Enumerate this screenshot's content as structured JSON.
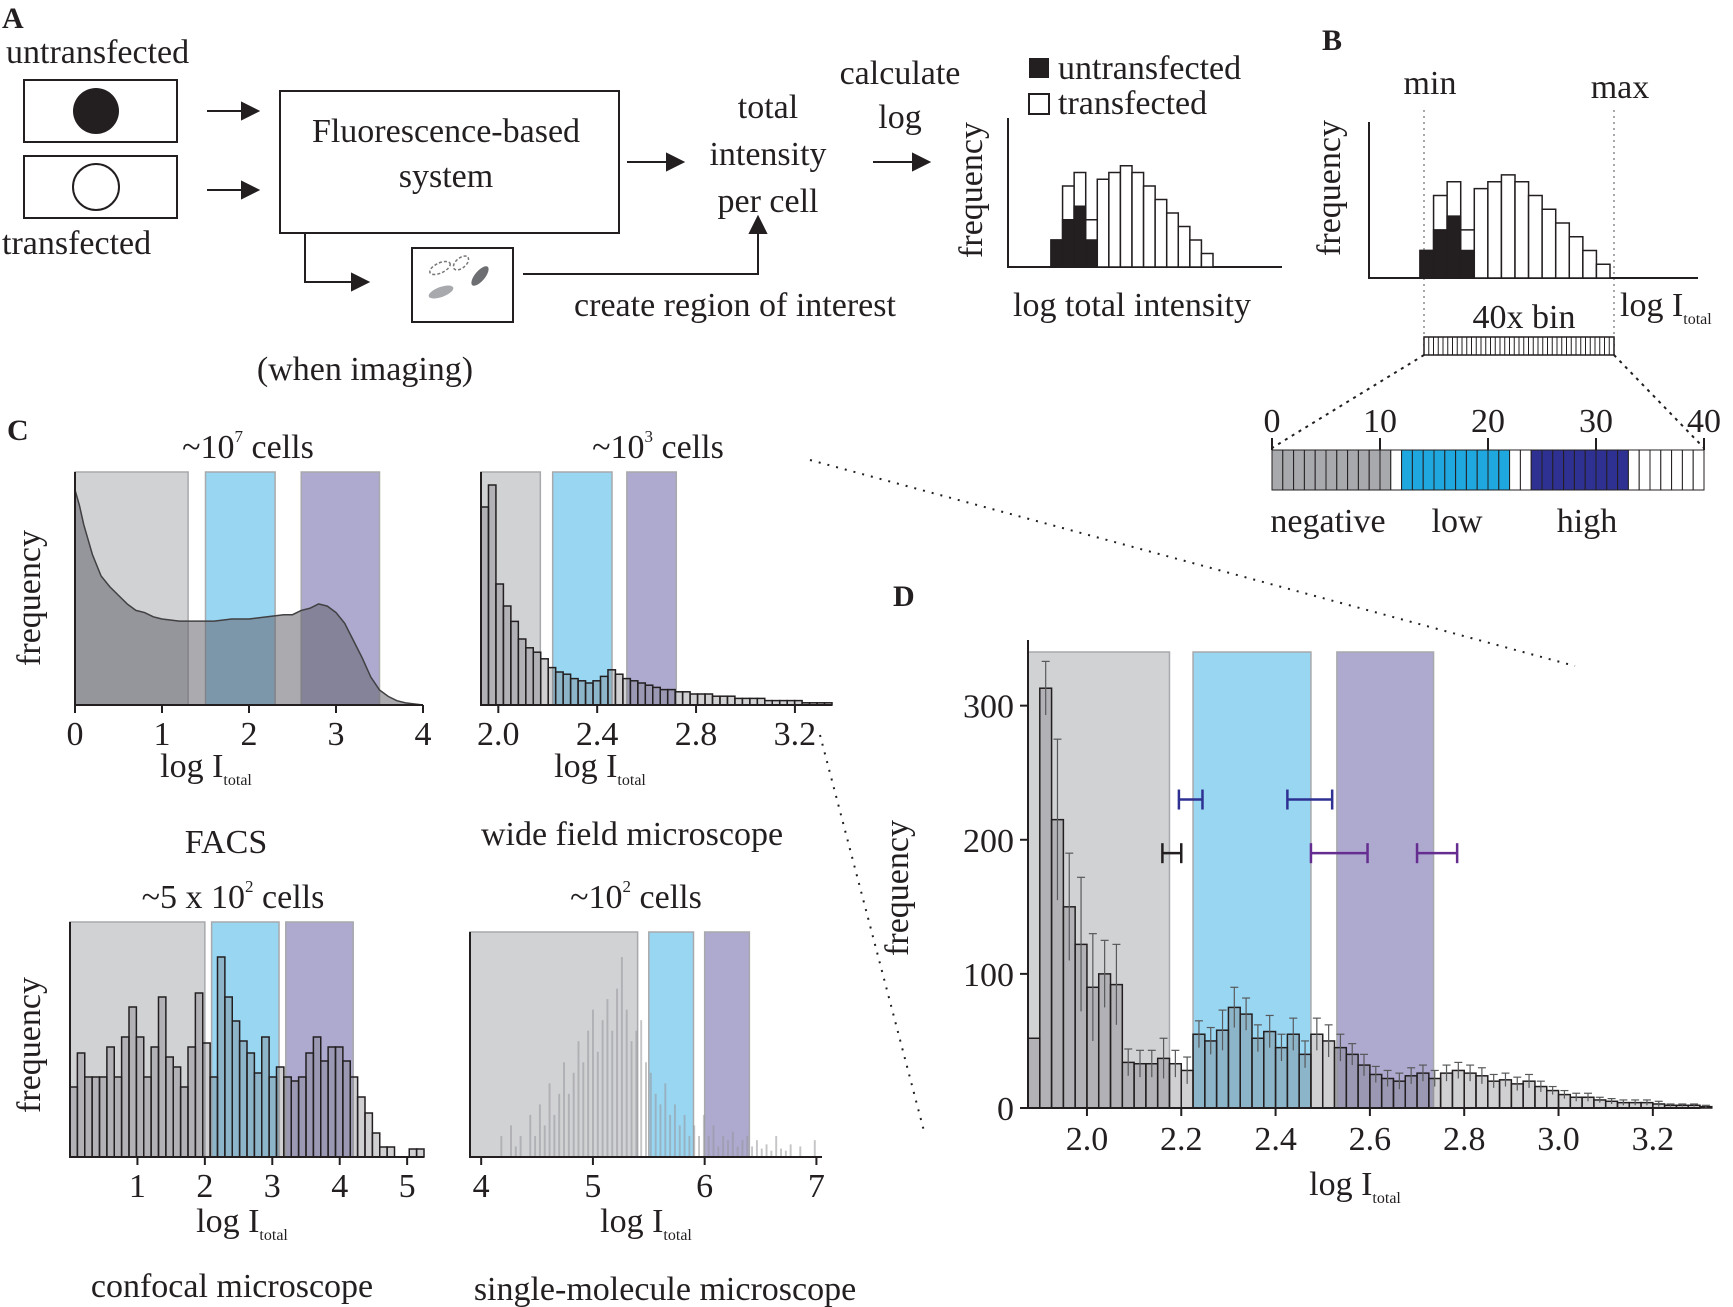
{
  "panel_a": {
    "letter": "A",
    "untransfected_label": "untransfected",
    "transfected_label": "transfected",
    "system_line1": "Fluorescence-based",
    "system_line2": "system",
    "total_line1": "total",
    "total_line2": "intensity",
    "total_line3": "per cell",
    "calc_line1": "calculate",
    "calc_line2": "log",
    "roi_label": "create region of interest",
    "imaging_label": "(when imaging)",
    "legend_untransfected": "untransfected",
    "legend_transfected": "transfected",
    "ylabel": "frequency",
    "xlabel": "log total intensity"
  },
  "panel_b": {
    "letter": "B",
    "min_label": "min",
    "max_label": "max",
    "ylabel": "frequency",
    "xlabel_main": "log I",
    "xlabel_sub": "total",
    "bin_label": "40x bin",
    "ticks": [
      "0",
      "10",
      "20",
      "30",
      "40"
    ],
    "negative_label": "negative",
    "low_label": "low",
    "high_label": "high"
  },
  "panel_c": {
    "letter": "C",
    "facs": {
      "count_main": "~10",
      "count_sup": "7",
      "count_tail": " cells",
      "ylabel": "frequency",
      "xticks": [
        "0",
        "1",
        "2",
        "3",
        "4"
      ],
      "xlabel_main": "log I",
      "xlabel_sub": "total",
      "name": "FACS"
    },
    "widefield": {
      "count_main": "~10",
      "count_sup": "3",
      "count_tail": " cells",
      "xticks": [
        "2.0",
        "2.4",
        "2.8",
        "3.2"
      ],
      "xlabel_main": "log I",
      "xlabel_sub": "total",
      "name": "wide field microscope"
    },
    "confocal": {
      "count_main": "~5 x 10",
      "count_sup": "2",
      "count_tail": " cells",
      "ylabel": "frequency",
      "xticks": [
        "1",
        "2",
        "3",
        "4",
        "5"
      ],
      "xlabel_main": "log I",
      "xlabel_sub": "total",
      "name": "confocal microscope"
    },
    "single": {
      "count_main": "~10",
      "count_sup": "2",
      "count_tail": " cells",
      "xticks": [
        "4",
        "5",
        "6",
        "7"
      ],
      "xlabel_main": "log I",
      "xlabel_sub": "total",
      "name": "single-molecule microscope"
    }
  },
  "panel_d": {
    "letter": "D",
    "ylabel": "frequency",
    "xlabel_main": "log I",
    "xlabel_sub": "total",
    "yticks": [
      "0",
      "100",
      "200",
      "300"
    ],
    "xticks": [
      "2.0",
      "2.2",
      "2.4",
      "2.6",
      "2.8",
      "3.0",
      "3.2"
    ]
  },
  "colors": {
    "negative_gray": "#a7a9ac",
    "gate_gray": "#d1d2d4",
    "low_cyan": "#1fa8e0",
    "gate_cyan": "#99d6f2",
    "high_navy": "#2e3192",
    "gate_purple": "#ada9cf",
    "ink": "#231f20"
  },
  "chart_data": [
    {
      "id": "panel-a-histogram",
      "type": "bar",
      "stacked": true,
      "xlabel": "log total intensity",
      "ylabel": "frequency",
      "legend": [
        "untransfected",
        "transfected"
      ],
      "series": [
        {
          "name": "untransfected",
          "values": [
            4,
            7,
            9,
            4,
            0,
            0,
            0,
            0,
            0,
            0,
            0,
            0,
            0,
            0
          ]
        },
        {
          "name": "transfected",
          "values": [
            0,
            5,
            5,
            3,
            13,
            14,
            15,
            14,
            12,
            10,
            8,
            6,
            4,
            2
          ]
        }
      ]
    },
    {
      "id": "panel-b-histogram",
      "type": "bar",
      "stacked": true,
      "ylabel": "frequency",
      "xlabel": "log Itotal",
      "series": [
        {
          "name": "untransfected",
          "values": [
            4,
            7,
            9,
            4,
            0,
            0,
            0,
            0,
            0,
            0,
            0,
            0,
            0,
            0
          ]
        },
        {
          "name": "transfected",
          "values": [
            0,
            5,
            5,
            3,
            13,
            14,
            15,
            14,
            12,
            10,
            8,
            6,
            4,
            2
          ]
        }
      ]
    },
    {
      "id": "panel-b-bins",
      "type": "bar",
      "categories": [
        "negative",
        "low",
        "high"
      ],
      "bin_ranges": [
        [
          0,
          11
        ],
        [
          12,
          22
        ],
        [
          24,
          33
        ]
      ],
      "total_bins": 40
    },
    {
      "id": "facs",
      "type": "area",
      "xlim": [
        0,
        4
      ],
      "x": [
        0,
        0.05,
        0.1,
        0.15,
        0.2,
        0.3,
        0.4,
        0.5,
        0.6,
        0.7,
        0.8,
        0.9,
        1.0,
        1.2,
        1.4,
        1.6,
        1.8,
        2.0,
        2.2,
        2.4,
        2.5,
        2.6,
        2.7,
        2.8,
        2.9,
        3.0,
        3.1,
        3.2,
        3.3,
        3.4,
        3.5,
        3.6,
        3.7,
        3.8,
        4.0
      ],
      "y": [
        100,
        93,
        84,
        77,
        70,
        60,
        55,
        51,
        47,
        44,
        43,
        41,
        40,
        39,
        39,
        39,
        40,
        40,
        41,
        42,
        42,
        44,
        45,
        47,
        46,
        43,
        38,
        30,
        22,
        13,
        7,
        4,
        2,
        1,
        0
      ],
      "gates": [
        [
          0,
          1.3
        ],
        [
          1.5,
          2.3
        ],
        [
          2.6,
          3.5
        ]
      ]
    },
    {
      "id": "widefield",
      "type": "bar",
      "xlim": [
        1.93,
        3.35
      ],
      "values": [
        90,
        100,
        55,
        45,
        38,
        30,
        26,
        24,
        21,
        17,
        15,
        14,
        12,
        11,
        10,
        11,
        13,
        16,
        14,
        12,
        11,
        10,
        9,
        8,
        7,
        7,
        6,
        6,
        5,
        5,
        5,
        4,
        4,
        4,
        3,
        3,
        3,
        3,
        2,
        2,
        2,
        2,
        2,
        1,
        1,
        1,
        1
      ],
      "gates": [
        [
          1.93,
          2.17
        ],
        [
          2.22,
          2.46
        ],
        [
          2.52,
          2.72
        ]
      ]
    },
    {
      "id": "confocal",
      "type": "bar",
      "xlim": [
        0,
        5.25
      ],
      "values": [
        35,
        52,
        40,
        40,
        40,
        55,
        40,
        60,
        75,
        60,
        40,
        55,
        80,
        50,
        45,
        35,
        55,
        82,
        57,
        40,
        100,
        80,
        68,
        58,
        52,
        42,
        60,
        40,
        45,
        40,
        38,
        40,
        52,
        60,
        48,
        55,
        55,
        48,
        40,
        30,
        22,
        12,
        5,
        5,
        0,
        0,
        4,
        4
      ],
      "gates": [
        [
          0,
          2.0
        ],
        [
          2.1,
          3.1
        ],
        [
          3.2,
          4.2
        ]
      ]
    },
    {
      "id": "single-molecule",
      "type": "bar",
      "xlim": [
        3.9,
        7.05
      ],
      "values": [
        0,
        0,
        0,
        0,
        0,
        0,
        10,
        0,
        15,
        5,
        10,
        0,
        20,
        10,
        25,
        15,
        35,
        20,
        30,
        45,
        30,
        40,
        55,
        45,
        60,
        70,
        50,
        65,
        75,
        60,
        80,
        95,
        70,
        55,
        60,
        65,
        45,
        40,
        30,
        25,
        35,
        20,
        25,
        15,
        20,
        10,
        15,
        10,
        20,
        10,
        15,
        5,
        10,
        8,
        12,
        5,
        8,
        10,
        5,
        8,
        4,
        6,
        3,
        10,
        4,
        3,
        6,
        0,
        5,
        0,
        0,
        8,
        0
      ],
      "gates": [
        [
          3.9,
          5.4
        ],
        [
          5.5,
          5.9
        ],
        [
          6.0,
          6.4
        ]
      ]
    },
    {
      "id": "panel-d",
      "type": "bar",
      "xlabel": "log Itotal",
      "ylabel": "frequency",
      "xlim": [
        1.875,
        3.3
      ],
      "ylim": [
        0,
        340
      ],
      "bin_width": 0.025,
      "values": [
        52,
        313,
        215,
        150,
        122,
        90,
        100,
        92,
        34,
        33,
        33,
        37,
        33,
        28,
        55,
        50,
        58,
        75,
        70,
        52,
        57,
        45,
        55,
        40,
        55,
        50,
        45,
        40,
        32,
        25,
        22,
        20,
        24,
        26,
        22,
        26,
        28,
        26,
        24,
        20,
        21,
        18,
        20,
        16,
        13,
        10,
        8,
        8,
        6,
        5,
        4,
        4,
        4,
        3,
        2,
        2,
        2,
        1
      ],
      "errors": [
        0,
        20,
        60,
        40,
        50,
        40,
        25,
        30,
        10,
        10,
        10,
        15,
        10,
        10,
        10,
        10,
        15,
        15,
        12,
        10,
        12,
        10,
        12,
        10,
        12,
        12,
        10,
        8,
        8,
        6,
        6,
        6,
        6,
        6,
        6,
        6,
        6,
        6,
        6,
        5,
        5,
        5,
        5,
        4,
        3,
        3,
        3,
        3,
        2,
        2,
        2,
        2,
        2,
        2,
        1,
        1,
        1,
        1
      ],
      "gates": [
        [
          1.875,
          2.175
        ],
        [
          2.225,
          2.475
        ],
        [
          2.53,
          2.735
        ]
      ],
      "range_markers": [
        {
          "x1": 2.195,
          "x2": 2.245,
          "y": 230,
          "color": "#2e3192"
        },
        {
          "x1": 2.425,
          "x2": 2.52,
          "y": 230,
          "color": "#2e3192"
        },
        {
          "x1": 2.16,
          "x2": 2.2,
          "y": 190,
          "color": "#231f20"
        },
        {
          "x1": 2.475,
          "x2": 2.595,
          "y": 190,
          "color": "#662d91"
        },
        {
          "x1": 2.7,
          "x2": 2.785,
          "y": 190,
          "color": "#662d91"
        }
      ]
    }
  ]
}
